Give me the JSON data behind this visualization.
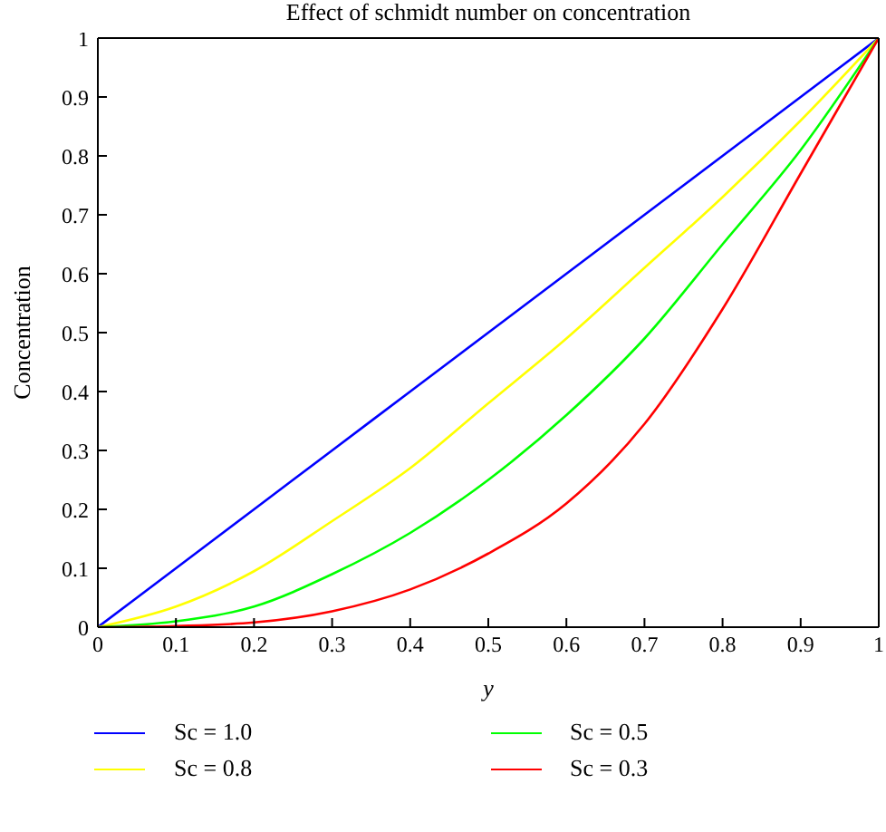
{
  "chart_data": {
    "type": "line",
    "title": "Effect of schmidt number on concentration",
    "xlabel": "y",
    "ylabel": "Concentration",
    "x": [
      0,
      0.1,
      0.2,
      0.3,
      0.4,
      0.5,
      0.6,
      0.7,
      0.8,
      0.9,
      1
    ],
    "series": [
      {
        "name": "Sc = 1.0",
        "color": "#0000ff",
        "values": [
          0,
          0.1,
          0.2,
          0.3,
          0.4,
          0.5,
          0.6,
          0.7,
          0.8,
          0.9,
          1
        ]
      },
      {
        "name": "Sc = 0.8",
        "color": "#ffff00",
        "values": [
          0,
          0.035,
          0.095,
          0.18,
          0.27,
          0.38,
          0.49,
          0.61,
          0.73,
          0.86,
          1
        ]
      },
      {
        "name": "Sc = 0.5",
        "color": "#00ff00",
        "values": [
          0,
          0.01,
          0.035,
          0.09,
          0.16,
          0.25,
          0.36,
          0.49,
          0.65,
          0.81,
          1
        ]
      },
      {
        "name": "Sc = 0.3",
        "color": "#ff0000",
        "values": [
          0,
          0.002,
          0.008,
          0.027,
          0.064,
          0.125,
          0.21,
          0.345,
          0.54,
          0.77,
          1
        ]
      }
    ],
    "xlim": [
      0,
      1
    ],
    "xticks": [
      0,
      0.1,
      0.2,
      0.3,
      0.4,
      0.5,
      0.6,
      0.7,
      0.8,
      0.9,
      1
    ],
    "ylim": [
      0,
      1
    ],
    "yticks": [
      0,
      0.1,
      0.2,
      0.3,
      0.4,
      0.5,
      0.6,
      0.7,
      0.8,
      0.9,
      1
    ],
    "grid": false,
    "legend": "bottom",
    "marker": "none",
    "line_style": "solid"
  }
}
